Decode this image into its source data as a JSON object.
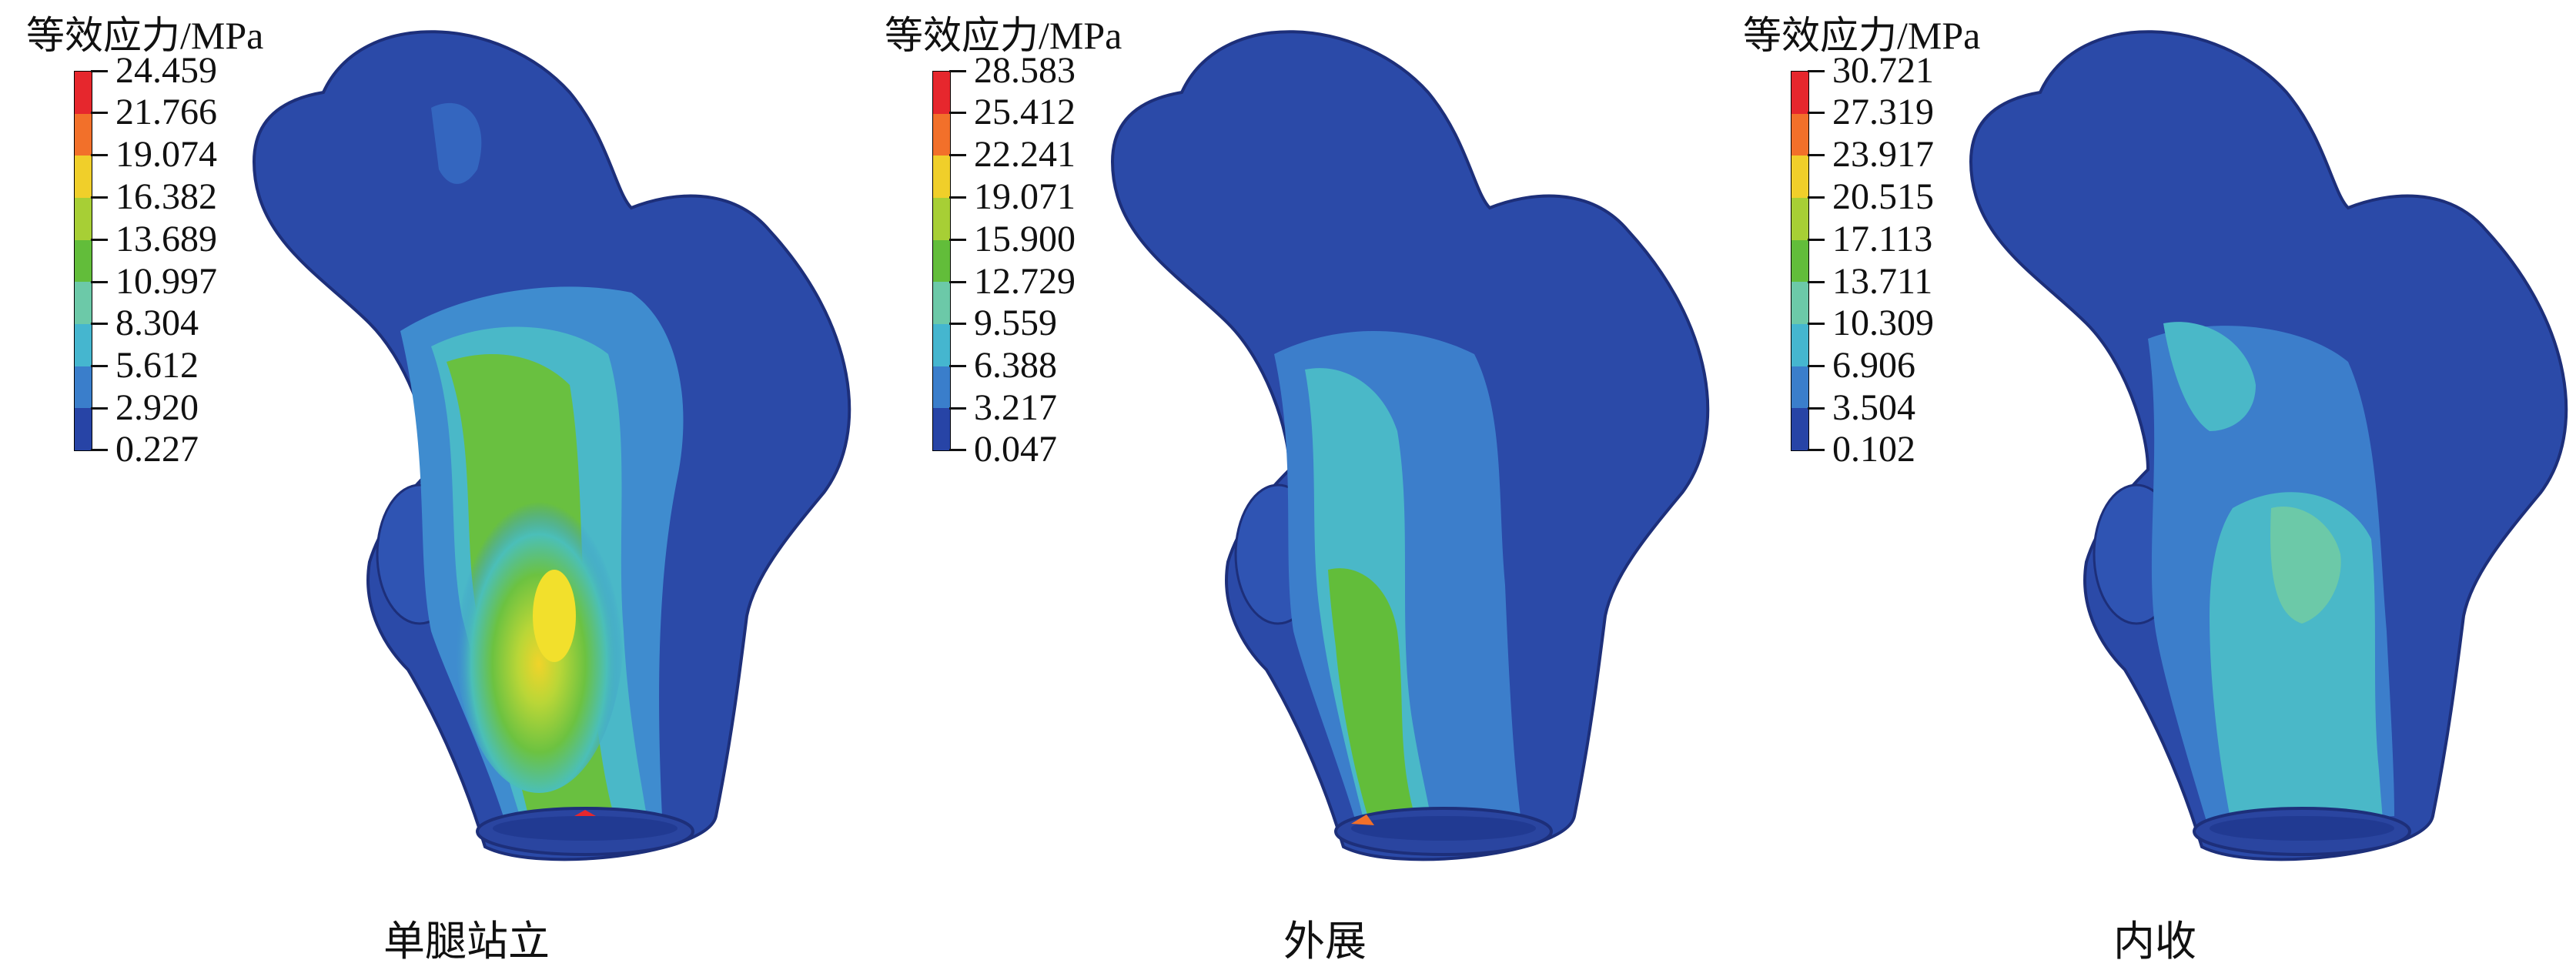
{
  "legend_title": "等效应力/MPa",
  "palette": [
    "#e6272d",
    "#f2702a",
    "#f0cf2a",
    "#a7cf35",
    "#62bd3a",
    "#6cc9a8",
    "#45b6cf",
    "#3a7ecb",
    "#2744a6"
  ],
  "panels": [
    {
      "title": "等效应力/MPa",
      "caption": "单腿站立",
      "ticks": [
        "24.459",
        "21.766",
        "19.074",
        "16.382",
        "13.689",
        "10.997",
        "8.304",
        "5.612",
        "2.920",
        "0.227"
      ]
    },
    {
      "title": "等效应力/MPa",
      "caption": "外展",
      "ticks": [
        "28.583",
        "25.412",
        "22.241",
        "19.071",
        "15.900",
        "12.729",
        "9.559",
        "6.388",
        "3.217",
        "0.047"
      ]
    },
    {
      "title": "等效应力/MPa",
      "caption": "内收",
      "ticks": [
        "30.721",
        "27.319",
        "23.917",
        "20.515",
        "17.113",
        "13.711",
        "10.309",
        "6.906",
        "3.504",
        "0.102"
      ]
    }
  ]
}
